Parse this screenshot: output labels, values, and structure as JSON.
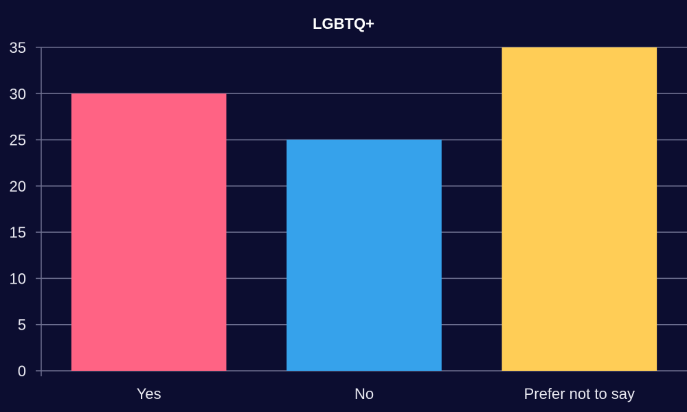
{
  "chart_data": {
    "type": "bar",
    "title": "LGBTQ+",
    "categories": [
      "Yes",
      "No",
      "Prefer not to say"
    ],
    "values": [
      30,
      25,
      35
    ],
    "colors": [
      "#ff6384",
      "#36a2eb",
      "#ffcd56"
    ],
    "xlabel": "",
    "ylabel": "",
    "ylim": [
      0,
      35
    ],
    "yticks": [
      "0",
      "5",
      "10",
      "15",
      "20",
      "25",
      "30",
      "35"
    ],
    "grid": true,
    "legend": "none"
  },
  "theme": {
    "background": "#0c0d30",
    "grid_color": "#6e7090",
    "text_color": "#e8e8f0",
    "title_color": "#ffffff"
  }
}
